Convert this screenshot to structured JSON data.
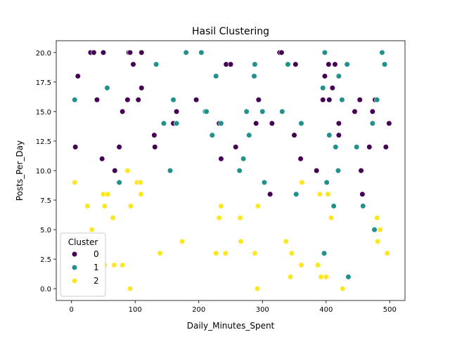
{
  "chart_data": {
    "type": "scatter",
    "title": "Hasil Clustering",
    "xlabel": "Daily_Minutes_Spent",
    "ylabel": "Posts_Per_Day",
    "xlim": [
      -24,
      524
    ],
    "ylim": [
      -1,
      21
    ],
    "xticks": [
      0,
      100,
      200,
      300,
      400,
      500
    ],
    "yticks": [
      0.0,
      2.5,
      5.0,
      7.5,
      10.0,
      12.5,
      15.0,
      17.5,
      20.0
    ],
    "grid": false,
    "legend": {
      "title": "Cluster",
      "placement": "lower-left"
    },
    "colors": {
      "0": "#440154",
      "1": "#21918c",
      "2": "#fde725"
    },
    "series": [
      {
        "name": "0",
        "points": [
          [
            6,
            12
          ],
          [
            10,
            18
          ],
          [
            30,
            20
          ],
          [
            35,
            20
          ],
          [
            40,
            16
          ],
          [
            48,
            11
          ],
          [
            50,
            20
          ],
          [
            68,
            10
          ],
          [
            75,
            12
          ],
          [
            80,
            15
          ],
          [
            88,
            16
          ],
          [
            90,
            20
          ],
          [
            92,
            20
          ],
          [
            97,
            19
          ],
          [
            105,
            16
          ],
          [
            110,
            17
          ],
          [
            110,
            20
          ],
          [
            130,
            13
          ],
          [
            131,
            12
          ],
          [
            160,
            14
          ],
          [
            165,
            15
          ],
          [
            196,
            16
          ],
          [
            232,
            14
          ],
          [
            235,
            11
          ],
          [
            243,
            19
          ],
          [
            250,
            19
          ],
          [
            258,
            12
          ],
          [
            290,
            14
          ],
          [
            294,
            16
          ],
          [
            327,
            20
          ],
          [
            330,
            20
          ],
          [
            340,
            19
          ],
          [
            350,
            13
          ],
          [
            352,
            19
          ],
          [
            360,
            11
          ],
          [
            385,
            10
          ],
          [
            395,
            16
          ],
          [
            398,
            18
          ],
          [
            404,
            19
          ],
          [
            405,
            16
          ],
          [
            405,
            13
          ],
          [
            410,
            17
          ],
          [
            414,
            19
          ],
          [
            420,
            14
          ],
          [
            420,
            13
          ],
          [
            445,
            15
          ],
          [
            453,
            16
          ],
          [
            455,
            10
          ],
          [
            457,
            8
          ],
          [
            468,
            12
          ],
          [
            473,
            15
          ],
          [
            477,
            16
          ],
          [
            494,
            12
          ],
          [
            499,
            14
          ],
          [
            312,
            8
          ],
          [
            315,
            14
          ]
        ]
      },
      {
        "name": "1",
        "points": [
          [
            5,
            16
          ],
          [
            56,
            17
          ],
          [
            75,
            9
          ],
          [
            133,
            19
          ],
          [
            145,
            14
          ],
          [
            155,
            10
          ],
          [
            160,
            16
          ],
          [
            165,
            14
          ],
          [
            180,
            20
          ],
          [
            204,
            20
          ],
          [
            210,
            15
          ],
          [
            212,
            15
          ],
          [
            221,
            13
          ],
          [
            227,
            18
          ],
          [
            235,
            14
          ],
          [
            264,
            10
          ],
          [
            270,
            11
          ],
          [
            275,
            15
          ],
          [
            279,
            13
          ],
          [
            287,
            18
          ],
          [
            288,
            19
          ],
          [
            300,
            15
          ],
          [
            303,
            9
          ],
          [
            331,
            15
          ],
          [
            340,
            19
          ],
          [
            353,
            8
          ],
          [
            361,
            14
          ],
          [
            395,
            17
          ],
          [
            397,
            3
          ],
          [
            398,
            20
          ],
          [
            401,
            9
          ],
          [
            405,
            13
          ],
          [
            412,
            7
          ],
          [
            415,
            12
          ],
          [
            419,
            10
          ],
          [
            420,
            18
          ],
          [
            425,
            16
          ],
          [
            433,
            19
          ],
          [
            435,
            1
          ],
          [
            448,
            12
          ],
          [
            458,
            7
          ],
          [
            473,
            14
          ],
          [
            476,
            5
          ],
          [
            480,
            16
          ],
          [
            488,
            20
          ],
          [
            492,
            19
          ],
          [
            397,
            3
          ]
        ]
      },
      {
        "name": "2",
        "points": [
          [
            5,
            9
          ],
          [
            25,
            7
          ],
          [
            32,
            5
          ],
          [
            50,
            8
          ],
          [
            52,
            7
          ],
          [
            57,
            8
          ],
          [
            65,
            6
          ],
          [
            67,
            2
          ],
          [
            80,
            2
          ],
          [
            88,
            10
          ],
          [
            92,
            0
          ],
          [
            93,
            7
          ],
          [
            103,
            9
          ],
          [
            108,
            9
          ],
          [
            109,
            8
          ],
          [
            139,
            3
          ],
          [
            174,
            4
          ],
          [
            227,
            3
          ],
          [
            232,
            6
          ],
          [
            235,
            7
          ],
          [
            242,
            3
          ],
          [
            265,
            6
          ],
          [
            266,
            4
          ],
          [
            288,
            3
          ],
          [
            292,
            0
          ],
          [
            293,
            7
          ],
          [
            337,
            4
          ],
          [
            344,
            1
          ],
          [
            346,
            3
          ],
          [
            361,
            2
          ],
          [
            362,
            9
          ],
          [
            387,
            2
          ],
          [
            390,
            8
          ],
          [
            392,
            1
          ],
          [
            400,
            1
          ],
          [
            403,
            8
          ],
          [
            408,
            6
          ],
          [
            426,
            0
          ],
          [
            480,
            6
          ],
          [
            481,
            4
          ],
          [
            485,
            5
          ],
          [
            496,
            3
          ],
          [
            52,
            2
          ]
        ]
      }
    ]
  }
}
